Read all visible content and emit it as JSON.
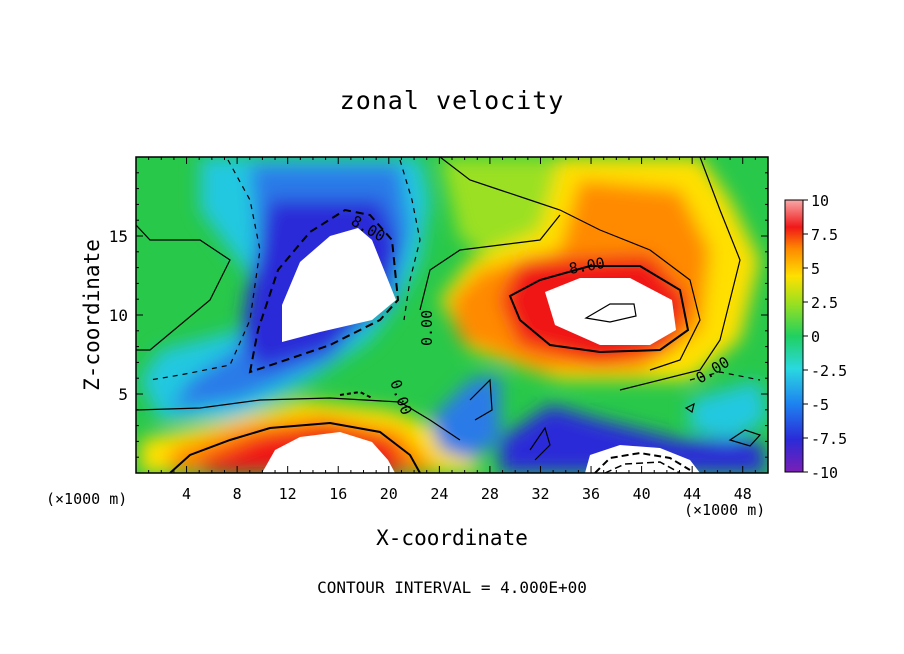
{
  "chart_data": {
    "type": "heatmap",
    "title": "zonal velocity",
    "xlabel": "X-coordinate",
    "ylabel": "Z-coordinate",
    "x_unit_label_left": "(×1000 m)",
    "x_unit_label_right": "(×1000 m)",
    "footer": "CONTOUR INTERVAL = 4.000E+00",
    "xlim": [
      0,
      50
    ],
    "ylim": [
      0,
      20
    ],
    "x_ticks": [
      "4",
      "8",
      "12",
      "16",
      "20",
      "24",
      "28",
      "32",
      "36",
      "40",
      "44",
      "48"
    ],
    "y_ticks": [
      "5",
      "10",
      "15"
    ],
    "colorbar": {
      "range": [
        -10,
        10
      ],
      "tick_labels": [
        "10",
        "7.5",
        "5",
        "2.5",
        "0",
        "-2.5",
        "-5",
        "-7.5",
        "-10"
      ]
    },
    "contour_labels": [
      "8.00",
      "8.00",
      "0.00",
      "0.00",
      "0.00"
    ],
    "contour_interval": 4.0
  },
  "colors": {
    "background": "#ffffff",
    "frame": "#000000"
  }
}
